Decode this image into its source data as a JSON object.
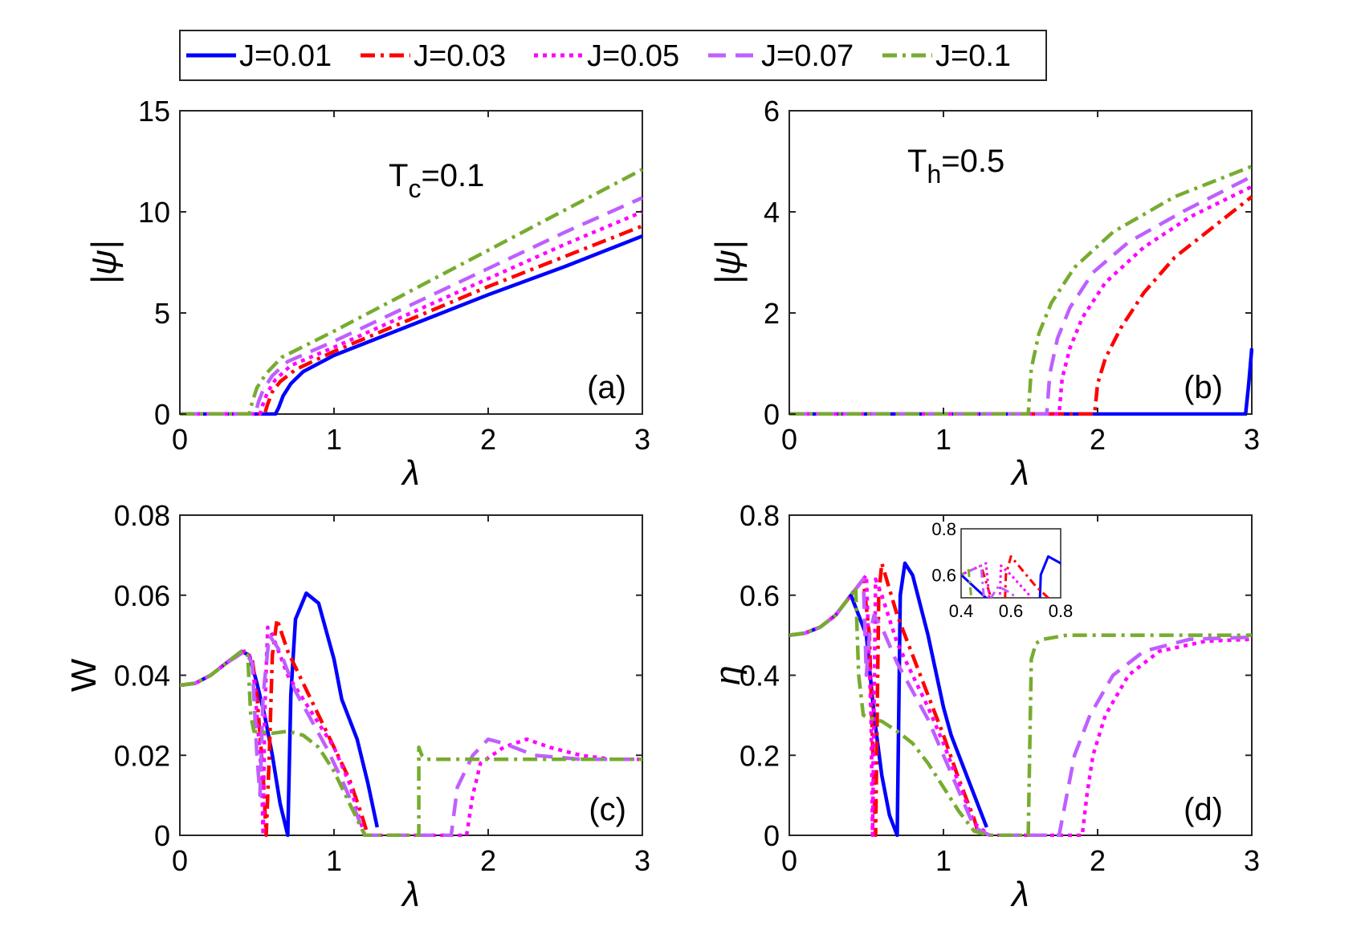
{
  "chart_data": [
    {
      "type": "line",
      "panel": "(a)",
      "annotation": {
        "main": "T",
        "sub": "c",
        "rest": "=0.1"
      },
      "xlabel": "λ",
      "ylabel": "|ψ|",
      "xlim": [
        0,
        3
      ],
      "ylim": [
        0,
        15
      ],
      "xticks": [
        0,
        1,
        2,
        3
      ],
      "yticks": [
        0,
        5,
        10,
        15
      ],
      "series": [
        {
          "name": "J=0.01",
          "x": [
            0,
            0.62,
            0.64,
            0.67,
            0.72,
            0.8,
            1.0,
            1.5,
            2.0,
            2.5,
            3.0
          ],
          "y": [
            0,
            0,
            0.3,
            0.9,
            1.5,
            2.1,
            2.9,
            4.4,
            5.9,
            7.3,
            8.8
          ]
        },
        {
          "name": "J=0.03",
          "x": [
            0,
            0.55,
            0.57,
            0.6,
            0.65,
            0.75,
            1.0,
            1.5,
            2.0,
            2.5,
            3.0
          ],
          "y": [
            0,
            0,
            0.5,
            1.1,
            1.6,
            2.2,
            3.1,
            4.7,
            6.3,
            7.8,
            9.3
          ]
        },
        {
          "name": "J=0.05",
          "x": [
            0,
            0.52,
            0.54,
            0.57,
            0.62,
            0.72,
            1.0,
            1.5,
            2.0,
            2.5,
            3.0
          ],
          "y": [
            0,
            0,
            0.5,
            1.1,
            1.7,
            2.4,
            3.3,
            5.0,
            6.7,
            8.4,
            10.0
          ]
        },
        {
          "name": "J=0.07",
          "x": [
            0,
            0.49,
            0.51,
            0.54,
            0.6,
            0.7,
            1.0,
            1.5,
            2.0,
            2.5,
            3.0
          ],
          "y": [
            0,
            0,
            0.6,
            1.2,
            1.9,
            2.6,
            3.6,
            5.4,
            7.2,
            9.0,
            10.7
          ]
        },
        {
          "name": "J=0.1",
          "x": [
            0,
            0.45,
            0.47,
            0.5,
            0.56,
            0.66,
            1.0,
            1.5,
            2.0,
            2.5,
            3.0
          ],
          "y": [
            0,
            0,
            0.6,
            1.3,
            2.0,
            2.8,
            4.1,
            6.1,
            8.1,
            10.1,
            12.1
          ]
        }
      ]
    },
    {
      "type": "line",
      "panel": "(b)",
      "annotation": {
        "main": "T",
        "sub": "h",
        "rest": "=0.5"
      },
      "xlabel": "λ",
      "ylabel": "|ψ|",
      "xlim": [
        0,
        3
      ],
      "ylim": [
        0,
        6
      ],
      "xticks": [
        0,
        1,
        2,
        3
      ],
      "yticks": [
        0,
        2,
        4,
        6
      ],
      "series": [
        {
          "name": "J=0.01",
          "x": [
            0,
            2.96,
            2.98,
            3.0
          ],
          "y": [
            0,
            0,
            0.6,
            1.3
          ]
        },
        {
          "name": "J=0.03",
          "x": [
            0,
            1.98,
            2.0,
            2.05,
            2.15,
            2.3,
            2.5,
            2.75,
            3.0
          ],
          "y": [
            0,
            0,
            0.6,
            1.1,
            1.7,
            2.4,
            3.1,
            3.7,
            4.3
          ]
        },
        {
          "name": "J=0.05",
          "x": [
            0,
            1.75,
            1.77,
            1.82,
            1.9,
            2.05,
            2.3,
            2.6,
            3.0
          ],
          "y": [
            0,
            0,
            0.7,
            1.3,
            1.9,
            2.6,
            3.3,
            3.9,
            4.5
          ]
        },
        {
          "name": "J=0.07",
          "x": [
            0,
            1.67,
            1.69,
            1.74,
            1.82,
            1.97,
            2.2,
            2.55,
            3.0
          ],
          "y": [
            0,
            0,
            0.8,
            1.5,
            2.1,
            2.8,
            3.4,
            4.0,
            4.7
          ]
        },
        {
          "name": "J=0.1",
          "x": [
            0,
            1.55,
            1.57,
            1.62,
            1.7,
            1.85,
            2.1,
            2.5,
            3.0
          ],
          "y": [
            0,
            0,
            0.9,
            1.6,
            2.2,
            2.9,
            3.6,
            4.3,
            4.9
          ]
        }
      ]
    },
    {
      "type": "line",
      "panel": "(c)",
      "xlabel": "λ",
      "ylabel": "W",
      "xlim": [
        0,
        3
      ],
      "ylim": [
        0,
        0.08
      ],
      "xticks": [
        0,
        1,
        2,
        3
      ],
      "yticks": [
        0,
        0.02,
        0.04,
        0.06,
        0.08
      ],
      "series": [
        {
          "name": "J=0.01",
          "x": [
            0,
            0.1,
            0.2,
            0.3,
            0.4,
            0.45,
            0.5,
            0.55,
            0.6,
            0.65,
            0.7,
            0.72,
            0.75,
            0.82,
            0.9,
            1.0,
            1.05,
            1.15,
            1.22,
            1.28
          ],
          "y": [
            0.0375,
            0.038,
            0.04,
            0.043,
            0.046,
            0.045,
            0.038,
            0.03,
            0.02,
            0.008,
            0,
            0.035,
            0.054,
            0.0605,
            0.058,
            0.044,
            0.034,
            0.024,
            0.013,
            0.002
          ]
        },
        {
          "name": "J=0.03",
          "x": [
            0,
            0.1,
            0.2,
            0.3,
            0.42,
            0.47,
            0.5,
            0.54,
            0.56,
            0.58,
            0.6,
            0.63,
            0.7,
            0.8,
            0.9,
            1.0,
            1.1,
            1.18,
            1.22
          ],
          "y": [
            0.0375,
            0.038,
            0.04,
            0.043,
            0.046,
            0.044,
            0.035,
            0.015,
            0,
            0.02,
            0.045,
            0.054,
            0.046,
            0.038,
            0.03,
            0.022,
            0.014,
            0.005,
            0
          ]
        },
        {
          "name": "J=0.05",
          "x": [
            0,
            0.1,
            0.2,
            0.3,
            0.42,
            0.47,
            0.5,
            0.53,
            0.54,
            0.55,
            0.57,
            0.6,
            0.7,
            0.8,
            0.9,
            1.0,
            1.1,
            1.15,
            1.2,
            1.3,
            1.75,
            1.86,
            1.9,
            1.95,
            2.1,
            2.25,
            2.4,
            2.6,
            2.8,
            3.0
          ],
          "y": [
            0.0375,
            0.038,
            0.04,
            0.043,
            0.046,
            0.044,
            0.03,
            0.015,
            0,
            0.03,
            0.052,
            0.05,
            0.04,
            0.034,
            0.028,
            0.022,
            0.013,
            0.006,
            0,
            0,
            0,
            0,
            0.01,
            0.018,
            0.022,
            0.024,
            0.022,
            0.02,
            0.019,
            0.019
          ]
        },
        {
          "name": "J=0.07",
          "x": [
            0,
            0.1,
            0.2,
            0.3,
            0.42,
            0.47,
            0.5,
            0.52,
            0.54,
            0.58,
            0.65,
            0.75,
            0.85,
            0.95,
            1.05,
            1.15,
            1.2,
            1.3,
            1.7,
            1.76,
            1.8,
            1.9,
            2.0,
            2.1,
            2.3,
            2.6,
            3.0
          ],
          "y": [
            0.0375,
            0.038,
            0.04,
            0.043,
            0.046,
            0.043,
            0.02,
            0.01,
            0.035,
            0.05,
            0.046,
            0.036,
            0.029,
            0.022,
            0.014,
            0.005,
            0,
            0,
            0,
            0,
            0.012,
            0.02,
            0.024,
            0.023,
            0.02,
            0.019,
            0.019
          ]
        },
        {
          "name": "J=0.1",
          "x": [
            0,
            0.1,
            0.2,
            0.3,
            0.4,
            0.44,
            0.46,
            0.48,
            0.6,
            0.7,
            0.8,
            0.9,
            1.0,
            1.1,
            1.15,
            1.2,
            1.3,
            1.55,
            1.55,
            1.57,
            1.6,
            1.8,
            2.0,
            2.5,
            3.0
          ],
          "y": [
            0.0375,
            0.038,
            0.04,
            0.043,
            0.046,
            0.045,
            0.03,
            0.026,
            0.0255,
            0.026,
            0.025,
            0.022,
            0.016,
            0.008,
            0.004,
            0,
            0,
            0,
            0.022,
            0.02,
            0.019,
            0.019,
            0.019,
            0.019,
            0.019
          ]
        }
      ]
    },
    {
      "type": "line",
      "panel": "(d)",
      "xlabel": "λ",
      "ylabel": "η",
      "xlim": [
        0,
        3
      ],
      "ylim": [
        0,
        0.8
      ],
      "xticks": [
        0,
        1,
        2,
        3
      ],
      "yticks": [
        0,
        0.2,
        0.4,
        0.6,
        0.8
      ],
      "series": [
        {
          "name": "J=0.01",
          "x": [
            0,
            0.1,
            0.2,
            0.3,
            0.4,
            0.5,
            0.55,
            0.6,
            0.65,
            0.7,
            0.72,
            0.75,
            0.8,
            0.9,
            1.0,
            1.05,
            1.1,
            1.2,
            1.28
          ],
          "y": [
            0.5,
            0.505,
            0.52,
            0.55,
            0.6,
            0.5,
            0.3,
            0.15,
            0.05,
            0,
            0.6,
            0.68,
            0.65,
            0.5,
            0.32,
            0.25,
            0.2,
            0.1,
            0.02
          ]
        },
        {
          "name": "J=0.03",
          "x": [
            0,
            0.1,
            0.2,
            0.3,
            0.4,
            0.48,
            0.52,
            0.55,
            0.56,
            0.58,
            0.6,
            0.7,
            0.8,
            0.9,
            1.0,
            1.1,
            1.2,
            1.23
          ],
          "y": [
            0.5,
            0.505,
            0.52,
            0.55,
            0.6,
            0.64,
            0.5,
            0.1,
            0,
            0.6,
            0.68,
            0.55,
            0.45,
            0.35,
            0.25,
            0.14,
            0.04,
            0
          ]
        },
        {
          "name": "J=0.05",
          "x": [
            0,
            0.1,
            0.2,
            0.3,
            0.4,
            0.5,
            0.53,
            0.54,
            0.56,
            0.6,
            0.7,
            0.8,
            0.9,
            1.0,
            1.1,
            1.2,
            1.3,
            1.9,
            1.93,
            1.97,
            2.05,
            2.2,
            2.4,
            2.7,
            3.0
          ],
          "y": [
            0.5,
            0.505,
            0.52,
            0.55,
            0.6,
            0.65,
            0.3,
            0,
            0.64,
            0.6,
            0.48,
            0.4,
            0.32,
            0.23,
            0.13,
            0.03,
            0,
            0,
            0.1,
            0.2,
            0.3,
            0.4,
            0.46,
            0.485,
            0.49
          ]
        },
        {
          "name": "J=0.07",
          "x": [
            0,
            0.1,
            0.2,
            0.3,
            0.4,
            0.48,
            0.5,
            0.52,
            0.55,
            0.6,
            0.7,
            0.8,
            0.9,
            1.0,
            1.1,
            1.2,
            1.3,
            1.75,
            1.8,
            1.85,
            1.95,
            2.1,
            2.3,
            2.6,
            3.0
          ],
          "y": [
            0.5,
            0.505,
            0.52,
            0.55,
            0.6,
            0.64,
            0.4,
            0.5,
            0.55,
            0.52,
            0.43,
            0.36,
            0.29,
            0.2,
            0.11,
            0.02,
            0,
            0,
            0.1,
            0.2,
            0.3,
            0.4,
            0.46,
            0.49,
            0.495
          ]
        },
        {
          "name": "J=0.1",
          "x": [
            0,
            0.1,
            0.2,
            0.3,
            0.4,
            0.43,
            0.45,
            0.48,
            0.55,
            0.6,
            0.7,
            0.8,
            0.9,
            1.0,
            1.1,
            1.2,
            1.3,
            1.55,
            1.57,
            1.6,
            1.65,
            1.8,
            2.0,
            2.5,
            3.0
          ],
          "y": [
            0.5,
            0.505,
            0.52,
            0.55,
            0.6,
            0.62,
            0.4,
            0.3,
            0.29,
            0.285,
            0.26,
            0.23,
            0.18,
            0.12,
            0.06,
            0.01,
            0,
            0,
            0.44,
            0.48,
            0.49,
            0.5,
            0.5,
            0.5,
            0.5
          ]
        }
      ],
      "inset": {
        "xlim": [
          0.4,
          0.8
        ],
        "ylim": [
          0.5,
          0.8
        ],
        "xticks": [
          0.4,
          0.6,
          0.8
        ],
        "yticks": [
          0.6,
          0.8
        ],
        "xticklabels": [
          "0.4",
          "0.6",
          "0.8"
        ],
        "yticklabels": [
          "0.6",
          "0.8"
        ]
      }
    }
  ],
  "legend": {
    "placement": "top",
    "entries": [
      {
        "label": "J=0.01",
        "color": "#0000FF",
        "style": "solid"
      },
      {
        "label": "J=0.03",
        "color": "#FF0000",
        "style": "dashdot"
      },
      {
        "label": "J=0.05",
        "color": "#FF00FF",
        "style": "dotted"
      },
      {
        "label": "J=0.07",
        "color": "#BF5FFF",
        "style": "dashed"
      },
      {
        "label": "J=0.1",
        "color": "#77AC30",
        "style": "dashdot"
      }
    ]
  },
  "series_colors": [
    "#0000FF",
    "#FF0000",
    "#FF00FF",
    "#BF5FFF",
    "#77AC30"
  ]
}
